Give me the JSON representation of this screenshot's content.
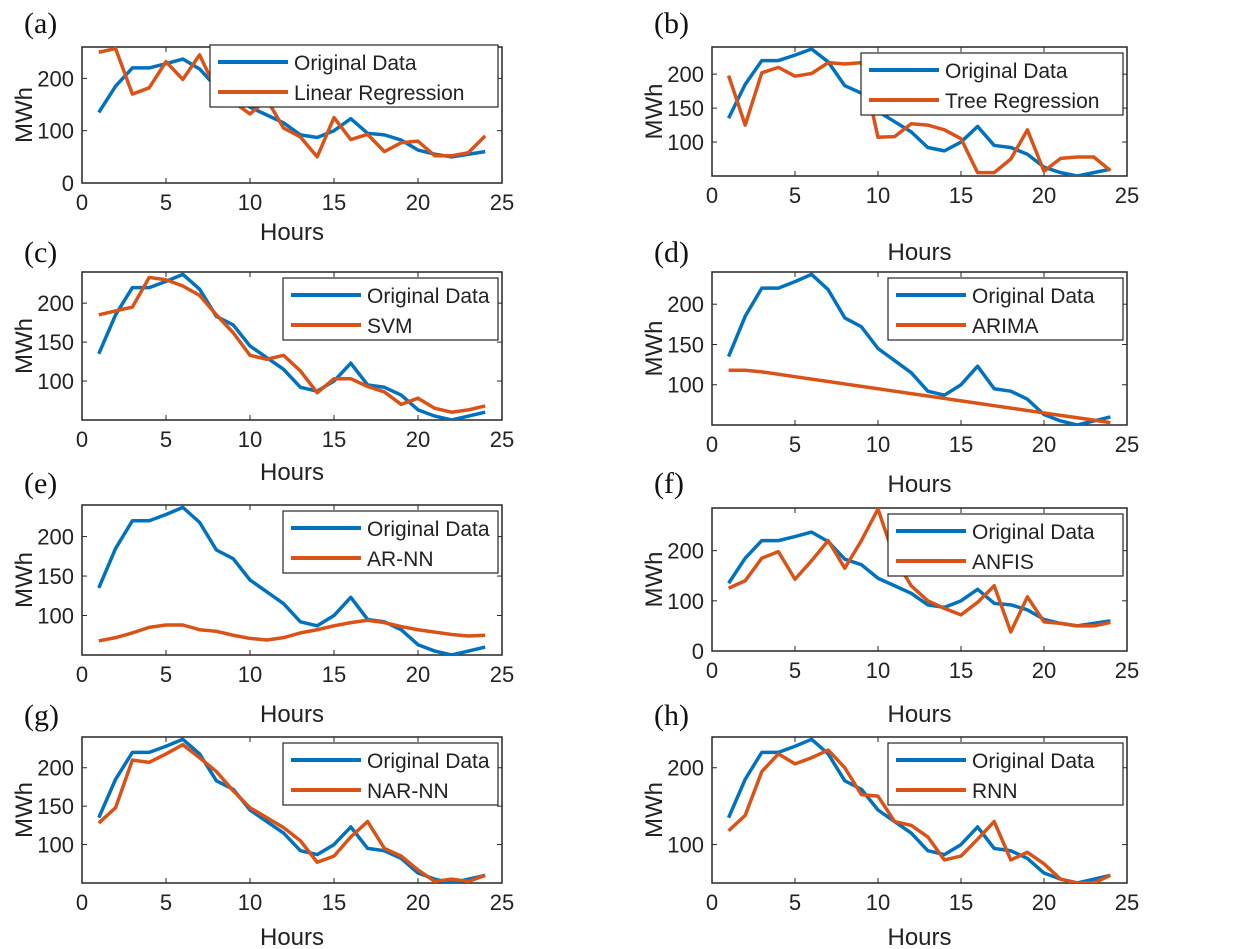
{
  "colors": {
    "original": "#0072BD",
    "model": "#D95319"
  },
  "chart_data": [
    {
      "panel": "(a)",
      "type": "line",
      "xlabel": "Hours",
      "ylabel": "MWh",
      "xlim": [
        0,
        25
      ],
      "ylim": [
        0,
        260
      ],
      "xticks": [
        0,
        5,
        10,
        15,
        20,
        25
      ],
      "yticks": [
        0,
        100,
        200
      ],
      "legend": "top-right",
      "x": [
        1,
        2,
        3,
        4,
        5,
        6,
        7,
        8,
        9,
        10,
        11,
        12,
        13,
        14,
        15,
        16,
        17,
        18,
        19,
        20,
        21,
        22,
        23,
        24
      ],
      "series": [
        {
          "name": "Original Data",
          "values": [
            135,
            185,
            220,
            220,
            228,
            237,
            218,
            183,
            172,
            145,
            130,
            115,
            92,
            87,
            100,
            123,
            95,
            92,
            82,
            63,
            55,
            50,
            55,
            60
          ]
        },
        {
          "name": "Linear Regression",
          "values": [
            250,
            257,
            170,
            182,
            232,
            198,
            245,
            177,
            155,
            132,
            160,
            105,
            88,
            50,
            125,
            83,
            93,
            60,
            77,
            80,
            52,
            52,
            58,
            90
          ]
        }
      ]
    },
    {
      "panel": "(b)",
      "type": "line",
      "xlabel": "Hours",
      "ylabel": "MWh",
      "xlim": [
        0,
        25
      ],
      "ylim": [
        50,
        240
      ],
      "xticks": [
        0,
        5,
        10,
        15,
        20,
        25
      ],
      "yticks": [
        100,
        150,
        200
      ],
      "legend": "top-right",
      "x": [
        1,
        2,
        3,
        4,
        5,
        6,
        7,
        8,
        9,
        10,
        11,
        12,
        13,
        14,
        15,
        16,
        17,
        18,
        19,
        20,
        21,
        22,
        23,
        24
      ],
      "series": [
        {
          "name": "Original Data",
          "values": [
            135,
            185,
            220,
            220,
            228,
            237,
            218,
            183,
            172,
            145,
            130,
            115,
            92,
            87,
            100,
            123,
            95,
            92,
            82,
            63,
            55,
            50,
            55,
            60
          ]
        },
        {
          "name": "Tree Regression",
          "values": [
            198,
            125,
            202,
            210,
            197,
            201,
            217,
            215,
            217,
            107,
            108,
            127,
            125,
            118,
            105,
            55,
            55,
            75,
            118,
            57,
            76,
            78,
            78,
            58
          ]
        }
      ]
    },
    {
      "panel": "(c)",
      "type": "line",
      "xlabel": "Hours",
      "ylabel": "MWh",
      "xlim": [
        0,
        25
      ],
      "ylim": [
        50,
        240
      ],
      "xticks": [
        0,
        5,
        10,
        15,
        20,
        25
      ],
      "yticks": [
        100,
        150,
        200
      ],
      "legend": "top-right",
      "x": [
        1,
        2,
        3,
        4,
        5,
        6,
        7,
        8,
        9,
        10,
        11,
        12,
        13,
        14,
        15,
        16,
        17,
        18,
        19,
        20,
        21,
        22,
        23,
        24
      ],
      "series": [
        {
          "name": "Original Data",
          "values": [
            135,
            185,
            220,
            220,
            228,
            237,
            218,
            183,
            172,
            145,
            130,
            115,
            92,
            87,
            100,
            123,
            95,
            92,
            82,
            63,
            55,
            50,
            55,
            60
          ]
        },
        {
          "name": "SVM",
          "values": [
            185,
            190,
            195,
            233,
            230,
            222,
            210,
            185,
            162,
            133,
            128,
            133,
            113,
            85,
            103,
            103,
            93,
            86,
            70,
            78,
            65,
            60,
            63,
            68
          ]
        }
      ]
    },
    {
      "panel": "(d)",
      "type": "line",
      "xlabel": "Hours",
      "ylabel": "MWh",
      "xlim": [
        0,
        25
      ],
      "ylim": [
        50,
        240
      ],
      "xticks": [
        0,
        5,
        10,
        15,
        20,
        25
      ],
      "yticks": [
        100,
        150,
        200
      ],
      "legend": "top-right",
      "x": [
        1,
        2,
        3,
        4,
        5,
        6,
        7,
        8,
        9,
        10,
        11,
        12,
        13,
        14,
        15,
        16,
        17,
        18,
        19,
        20,
        21,
        22,
        23,
        24
      ],
      "series": [
        {
          "name": "Original Data",
          "values": [
            135,
            185,
            220,
            220,
            228,
            237,
            218,
            183,
            172,
            145,
            130,
            115,
            92,
            87,
            100,
            123,
            95,
            92,
            82,
            63,
            55,
            50,
            55,
            60
          ]
        },
        {
          "name": "ARIMA",
          "values": [
            118,
            118,
            116,
            113,
            110,
            107,
            104,
            101,
            98,
            95,
            92,
            89,
            86,
            83,
            80,
            77,
            74,
            71,
            68,
            65,
            62,
            59,
            56,
            53
          ]
        }
      ]
    },
    {
      "panel": "(e)",
      "type": "line",
      "xlabel": "Hours",
      "ylabel": "MWh",
      "xlim": [
        0,
        25
      ],
      "ylim": [
        50,
        240
      ],
      "xticks": [
        0,
        5,
        10,
        15,
        20,
        25
      ],
      "yticks": [
        100,
        150,
        200
      ],
      "legend": "top-right",
      "x": [
        1,
        2,
        3,
        4,
        5,
        6,
        7,
        8,
        9,
        10,
        11,
        12,
        13,
        14,
        15,
        16,
        17,
        18,
        19,
        20,
        21,
        22,
        23,
        24
      ],
      "series": [
        {
          "name": "Original Data",
          "values": [
            135,
            185,
            220,
            220,
            228,
            237,
            218,
            183,
            172,
            145,
            130,
            115,
            92,
            87,
            100,
            123,
            95,
            92,
            82,
            63,
            55,
            50,
            55,
            60
          ]
        },
        {
          "name": "AR-NN",
          "values": [
            68,
            72,
            78,
            85,
            88,
            88,
            82,
            80,
            75,
            71,
            69,
            72,
            78,
            82,
            87,
            91,
            94,
            91,
            86,
            82,
            79,
            76,
            74,
            75
          ]
        }
      ]
    },
    {
      "panel": "(f)",
      "type": "line",
      "xlabel": "Hours",
      "ylabel": "MWh",
      "xlim": [
        0,
        25
      ],
      "ylim": [
        0,
        285
      ],
      "xticks": [
        0,
        5,
        10,
        15,
        20,
        25
      ],
      "yticks": [
        0,
        100,
        200
      ],
      "legend": "top-right",
      "x": [
        1,
        2,
        3,
        4,
        5,
        6,
        7,
        8,
        9,
        10,
        11,
        12,
        13,
        14,
        15,
        16,
        17,
        18,
        19,
        20,
        21,
        22,
        23,
        24
      ],
      "series": [
        {
          "name": "Original Data",
          "values": [
            135,
            185,
            220,
            220,
            228,
            237,
            218,
            183,
            172,
            145,
            130,
            115,
            92,
            87,
            100,
            123,
            95,
            92,
            82,
            63,
            55,
            50,
            55,
            60
          ]
        },
        {
          "name": "ANFIS",
          "values": [
            125,
            140,
            185,
            198,
            143,
            180,
            220,
            165,
            220,
            283,
            185,
            130,
            100,
            85,
            72,
            97,
            130,
            38,
            108,
            58,
            55,
            50,
            50,
            57
          ]
        }
      ]
    },
    {
      "panel": "(g)",
      "type": "line",
      "xlabel": "Hours",
      "ylabel": "MWh",
      "xlim": [
        0,
        25
      ],
      "ylim": [
        50,
        240
      ],
      "xticks": [
        0,
        5,
        10,
        15,
        20,
        25
      ],
      "yticks": [
        100,
        150,
        200
      ],
      "legend": "top-right",
      "x": [
        1,
        2,
        3,
        4,
        5,
        6,
        7,
        8,
        9,
        10,
        11,
        12,
        13,
        14,
        15,
        16,
        17,
        18,
        19,
        20,
        21,
        22,
        23,
        24
      ],
      "series": [
        {
          "name": "Original Data",
          "values": [
            135,
            185,
            220,
            220,
            228,
            237,
            218,
            183,
            172,
            145,
            130,
            115,
            92,
            87,
            100,
            123,
            95,
            92,
            82,
            63,
            55,
            50,
            55,
            60
          ]
        },
        {
          "name": "NAR-NN",
          "values": [
            128,
            148,
            210,
            207,
            218,
            230,
            213,
            195,
            170,
            148,
            135,
            122,
            105,
            77,
            85,
            110,
            130,
            95,
            85,
            67,
            52,
            55,
            52,
            60
          ]
        }
      ]
    },
    {
      "panel": "(h)",
      "type": "line",
      "xlabel": "Hours",
      "ylabel": "MWh",
      "xlim": [
        0,
        25
      ],
      "ylim": [
        50,
        240
      ],
      "xticks": [
        0,
        5,
        10,
        15,
        20,
        25
      ],
      "yticks": [
        100,
        200
      ],
      "legend": "top-right",
      "x": [
        1,
        2,
        3,
        4,
        5,
        6,
        7,
        8,
        9,
        10,
        11,
        12,
        13,
        14,
        15,
        16,
        17,
        18,
        19,
        20,
        21,
        22,
        23,
        24
      ],
      "series": [
        {
          "name": "Original Data",
          "values": [
            135,
            185,
            220,
            220,
            228,
            237,
            218,
            183,
            172,
            145,
            130,
            115,
            92,
            87,
            100,
            123,
            95,
            92,
            82,
            63,
            55,
            50,
            55,
            60
          ]
        },
        {
          "name": "RNN",
          "values": [
            118,
            138,
            195,
            218,
            205,
            213,
            223,
            200,
            165,
            163,
            130,
            125,
            110,
            80,
            85,
            107,
            130,
            80,
            90,
            75,
            55,
            50,
            50,
            60
          ]
        }
      ]
    }
  ]
}
